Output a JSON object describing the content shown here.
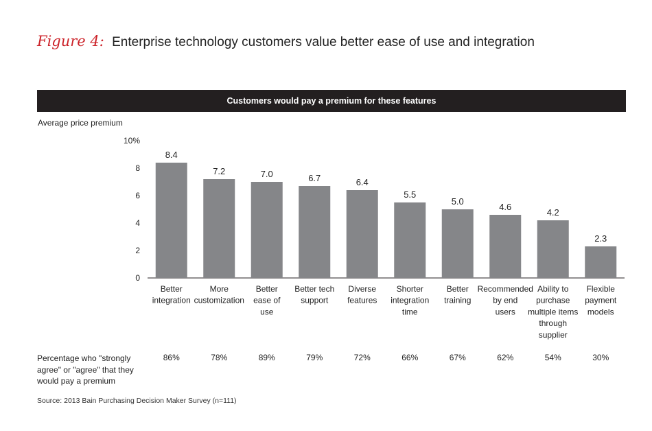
{
  "figure": {
    "label": "Figure 4:",
    "title": "Enterprise technology customers value better ease of use and integration"
  },
  "banner": "Customers would pay a premium for these features",
  "chart_data": {
    "type": "bar",
    "title": "Customers would pay a premium for these features",
    "ylabel": "Average price premium",
    "xlabel": "",
    "ylim": [
      0,
      10
    ],
    "yticks": [
      "0",
      "2",
      "4",
      "6",
      "8",
      "10%"
    ],
    "ytick_values": [
      0,
      2,
      4,
      6,
      8,
      10
    ],
    "grid": false,
    "bar_color": "#858689",
    "categories": [
      [
        "Better",
        "integration"
      ],
      [
        "More",
        "customization"
      ],
      [
        "Better",
        "ease of",
        "use"
      ],
      [
        "Better tech",
        "support"
      ],
      [
        "Diverse",
        "features"
      ],
      [
        "Shorter",
        "integration",
        "time"
      ],
      [
        "Better",
        "training"
      ],
      [
        "Recommended",
        "by end",
        "users"
      ],
      [
        "Ability to",
        "purchase",
        "multiple items",
        "through",
        "supplier"
      ],
      [
        "Flexible",
        "payment",
        "models"
      ]
    ],
    "values": [
      8.4,
      7.2,
      7.0,
      6.7,
      6.4,
      5.5,
      5.0,
      4.6,
      4.2,
      2.3
    ],
    "value_labels": [
      "8.4",
      "7.2",
      "7.0",
      "6.7",
      "6.4",
      "5.5",
      "5.0",
      "4.6",
      "4.2",
      "2.3"
    ],
    "agree_pct": [
      86,
      78,
      89,
      79,
      72,
      66,
      67,
      62,
      54,
      30
    ],
    "agree_pct_labels": [
      "86%",
      "78%",
      "89%",
      "79%",
      "72%",
      "66%",
      "67%",
      "62%",
      "54%",
      "30%"
    ]
  },
  "row_label": "Percentage who \"strongly agree\" or \"agree\" that they would pay a premium",
  "source": "Source: 2013 Bain Purchasing Decision Maker Survey (n=111)",
  "colors": {
    "accent": "#cc2229",
    "banner": "#231f20",
    "bar": "#858689"
  }
}
